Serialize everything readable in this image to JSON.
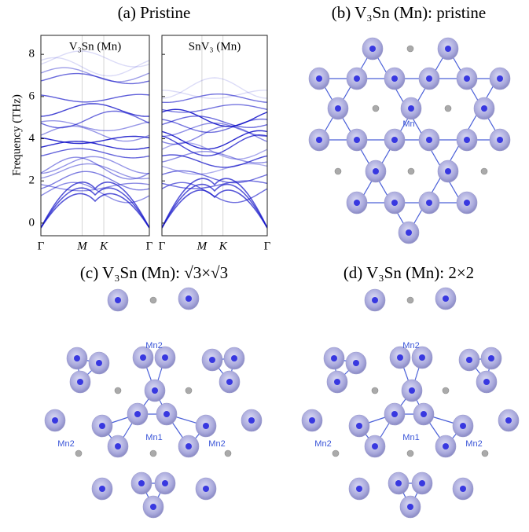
{
  "panel_a": {
    "title": "(a) Pristine",
    "ylabel": "Frequency (THz)",
    "ylim": [
      -0.6,
      8.9
    ],
    "yticks": [
      0,
      2,
      4,
      6,
      8
    ],
    "subplots": [
      {
        "title": "V₃Sn (Mn)",
        "xticks": [
          "Γ",
          "M",
          "K",
          "Γ"
        ]
      },
      {
        "title": "SnV₃ (Mn)",
        "xticks": [
          "Γ",
          "M",
          "K",
          "Γ"
        ]
      }
    ]
  },
  "panel_b": {
    "title": "(b) V₃Sn (Mn): pristine",
    "labels": [
      "Mn"
    ]
  },
  "panel_c": {
    "title": "(c) V₃Sn (Mn):  √3×√3",
    "labels": [
      "Mn2",
      "Mn1",
      "Mn2",
      "Mn2"
    ]
  },
  "panel_d": {
    "title": "(d) V₃Sn (Mn): 2×2",
    "labels": [
      "Mn2",
      "Mn1",
      "Mn2",
      "Mn2"
    ]
  }
}
